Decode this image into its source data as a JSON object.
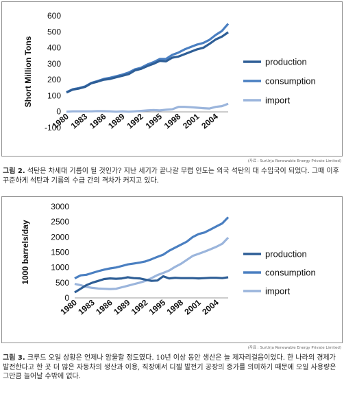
{
  "figure1": {
    "source": "(자료 : SurUrja Renewable Energy Private Limited)",
    "caption_label": "그림 2.",
    "caption_text": "석탄은 차세대 기름이 될 것인가? 지난 세기가 끝나갈 무렵 인도는 외국 석탄의 대 수입국이 되었다. 그때 이후 꾸준하게 석탄과 기름의 수급 간의 격차가 커지고 있다.",
    "chart_data": {
      "type": "line",
      "ylabel": "Short Million Tons",
      "ylim": [
        -100,
        600
      ],
      "yticks": [
        "600",
        "500",
        "400",
        "300",
        "200",
        "100",
        "0",
        "-100"
      ],
      "xticks": [
        "1980",
        "1983",
        "1986",
        "1989",
        "1992",
        "1995",
        "1998",
        "2001",
        "2004"
      ],
      "x": [
        1980,
        1981,
        1982,
        1983,
        1984,
        1985,
        1986,
        1987,
        1988,
        1989,
        1990,
        1991,
        1992,
        1993,
        1994,
        1995,
        1996,
        1997,
        1998,
        1999,
        2000,
        2001,
        2002,
        2003,
        2004,
        2005,
        2006
      ],
      "series": [
        {
          "name": "production",
          "color": "#2e5e96",
          "values": [
            120,
            138,
            145,
            155,
            178,
            188,
            200,
            205,
            215,
            225,
            235,
            258,
            268,
            285,
            300,
            318,
            315,
            338,
            345,
            360,
            375,
            390,
            400,
            425,
            452,
            470,
            497
          ]
        },
        {
          "name": "consumption",
          "color": "#4a7fc1",
          "values": [
            122,
            140,
            148,
            158,
            180,
            192,
            205,
            212,
            222,
            232,
            245,
            265,
            275,
            295,
            310,
            330,
            330,
            355,
            370,
            390,
            405,
            420,
            430,
            450,
            480,
            505,
            550
          ]
        },
        {
          "name": "import",
          "color": "#9bb5dc",
          "values": [
            0,
            2,
            2,
            2,
            2,
            4,
            3,
            2,
            0,
            2,
            0,
            2,
            5,
            8,
            10,
            8,
            12,
            15,
            30,
            30,
            28,
            25,
            22,
            20,
            30,
            35,
            50
          ]
        }
      ]
    }
  },
  "figure2": {
    "source": "(자료 : SurUrja Renewable Energy Private Limited)",
    "caption_label": "그림 3.",
    "caption_text": "크루드 오일 상황은 언제나 암울할 정도였다. 10년 이상 동안 생산은 늘 제자리걸음이었다. 한 나라의 경제가 발전한다고 한 곳 더 많은 자동차의 생산과 이용, 직장에서 디젤 발전기 공장의 증가를 의미하기 때문에 오일 사용량은 그만큼 늘어날 수밖에 없다.",
    "chart_data": {
      "type": "line",
      "ylabel": "1000 barrels/day",
      "ylim": [
        0,
        3000
      ],
      "yticks": [
        "3000",
        "2500",
        "2000",
        "1500",
        "1000",
        "500",
        "0"
      ],
      "xticks": [
        "1980",
        "1983",
        "1986",
        "1989",
        "1992",
        "1995",
        "1998",
        "2001",
        "2004"
      ],
      "x": [
        1980,
        1981,
        1982,
        1983,
        1984,
        1985,
        1986,
        1987,
        1988,
        1989,
        1990,
        1991,
        1992,
        1993,
        1994,
        1995,
        1996,
        1997,
        1998,
        1999,
        2000,
        2001,
        2002,
        2003,
        2004,
        2005,
        2006
      ],
      "series": [
        {
          "name": "production",
          "color": "#2e5e96",
          "values": [
            180,
            300,
            420,
            500,
            560,
            620,
            640,
            630,
            640,
            680,
            650,
            640,
            600,
            560,
            570,
            710,
            640,
            660,
            650,
            650,
            650,
            640,
            650,
            660,
            660,
            650,
            680
          ]
        },
        {
          "name": "consumption",
          "color": "#4a7fc1",
          "values": [
            640,
            740,
            760,
            820,
            880,
            930,
            970,
            1000,
            1050,
            1100,
            1130,
            1160,
            1200,
            1270,
            1350,
            1420,
            1550,
            1650,
            1750,
            1850,
            2000,
            2100,
            2150,
            2250,
            2350,
            2450,
            2650
          ]
        },
        {
          "name": "import",
          "color": "#9bb5dc",
          "values": [
            460,
            420,
            360,
            330,
            310,
            300,
            290,
            300,
            350,
            400,
            450,
            500,
            560,
            650,
            750,
            820,
            900,
            1020,
            1120,
            1250,
            1380,
            1450,
            1520,
            1600,
            1680,
            1780,
            1980
          ]
        }
      ]
    }
  }
}
